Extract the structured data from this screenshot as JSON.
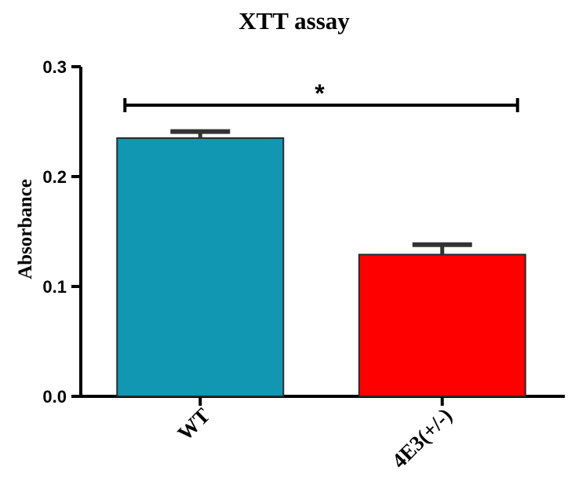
{
  "chart_data": {
    "type": "bar",
    "title": "XTT assay",
    "xlabel": "",
    "ylabel": "Absorbance",
    "categories": [
      "WT",
      "4E3(+/-)"
    ],
    "values": [
      0.235,
      0.129
    ],
    "errors": [
      0.006,
      0.009
    ],
    "colors": [
      "#1297B3",
      "#FF0000"
    ],
    "ylim": [
      0,
      0.3
    ],
    "yticks": [
      0.0,
      0.1,
      0.2,
      0.3
    ],
    "ytick_labels": [
      "0.0",
      "0.1",
      "0.2",
      "0.3"
    ],
    "significance": {
      "between": [
        "WT",
        "4E3(+/-)"
      ],
      "label": "*"
    },
    "grid": false,
    "legend": "none"
  }
}
